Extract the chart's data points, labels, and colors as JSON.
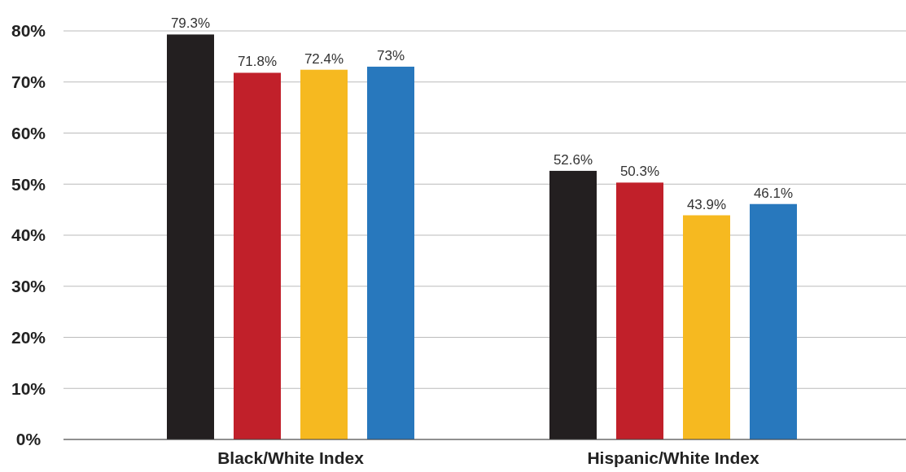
{
  "chart_data": {
    "type": "bar",
    "categories": [
      "Black/White Index",
      "Hispanic/White Index"
    ],
    "series": [
      {
        "color": "#231f20",
        "values": [
          79.3,
          52.6
        ],
        "value_labels": [
          "79.3%",
          "52.6%"
        ]
      },
      {
        "color": "#c1202a",
        "values": [
          71.8,
          50.3
        ],
        "value_labels": [
          "71.8%",
          "50.3%"
        ]
      },
      {
        "color": "#f6b920",
        "values": [
          72.4,
          43.9
        ],
        "value_labels": [
          "72.4%",
          "43.9%"
        ]
      },
      {
        "color": "#2878bd",
        "values": [
          73,
          46.1
        ],
        "value_labels": [
          "73%",
          "46.1%"
        ]
      }
    ],
    "ylim": [
      0,
      80
    ],
    "yticks": [
      {
        "value": 0,
        "label": "0%"
      },
      {
        "value": 10,
        "label": "10%"
      },
      {
        "value": 20,
        "label": "20%"
      },
      {
        "value": 30,
        "label": "30%"
      },
      {
        "value": 40,
        "label": "40%"
      },
      {
        "value": 50,
        "label": "50%"
      },
      {
        "value": 60,
        "label": "60%"
      },
      {
        "value": 70,
        "label": "70%"
      },
      {
        "value": 80,
        "label": "80%"
      }
    ],
    "grid": "y"
  }
}
